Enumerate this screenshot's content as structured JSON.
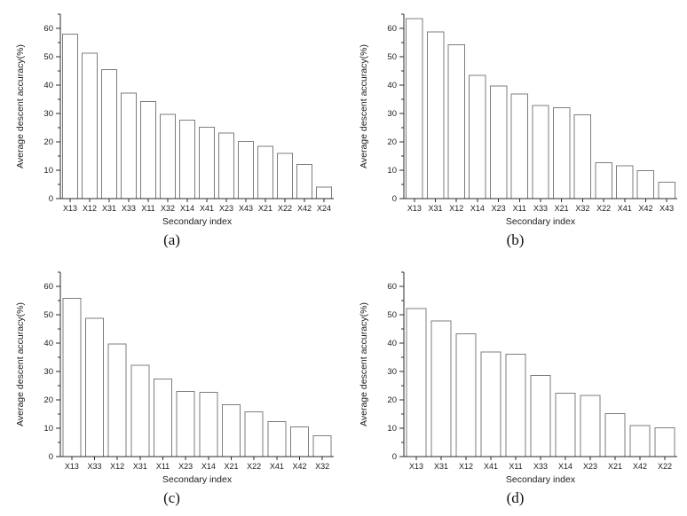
{
  "page": {
    "background": "#ffffff"
  },
  "colors": {
    "bar_fill": "#ffffff",
    "bar_stroke": "#7d7d7d",
    "axis": "#2b2b2b",
    "text": "#1c1c1c"
  },
  "chart_data": [
    {
      "type": "bar",
      "caption": "(a)",
      "title": "",
      "xlabel": "Secondary index",
      "ylabel": "Average descent accuracy(%)",
      "ylim": [
        0,
        65
      ],
      "yticks": [
        0,
        10,
        20,
        30,
        40,
        50,
        60
      ],
      "minor_tick_step": 5,
      "grid": false,
      "legend_position": "none",
      "categories": [
        "X13",
        "X12",
        "X31",
        "X33",
        "X11",
        "X32",
        "X14",
        "X41",
        "X23",
        "X43",
        "X21",
        "X22",
        "X42",
        "X24"
      ],
      "values": [
        58.0,
        51.3,
        45.5,
        37.2,
        34.2,
        29.7,
        27.7,
        25.1,
        23.2,
        20.1,
        18.4,
        16.0,
        12.0,
        4.1
      ]
    },
    {
      "type": "bar",
      "caption": "(b)",
      "title": "",
      "xlabel": "Secondary index",
      "ylabel": "Average descent accuracy(%)",
      "ylim": [
        0,
        65
      ],
      "yticks": [
        0,
        10,
        20,
        30,
        40,
        50,
        60
      ],
      "minor_tick_step": 5,
      "grid": false,
      "legend_position": "none",
      "categories": [
        "X13",
        "X31",
        "X12",
        "X14",
        "X23",
        "X11",
        "X33",
        "X21",
        "X32",
        "X22",
        "X41",
        "X42",
        "X43"
      ],
      "values": [
        63.5,
        58.8,
        54.2,
        43.5,
        39.7,
        36.8,
        32.8,
        32.0,
        29.5,
        12.7,
        11.5,
        9.8,
        5.8
      ]
    },
    {
      "type": "bar",
      "caption": "(c)",
      "title": "",
      "xlabel": "Secondary index",
      "ylabel": "Average descent accuracy(%)",
      "ylim": [
        0,
        65
      ],
      "yticks": [
        0,
        10,
        20,
        30,
        40,
        50,
        60
      ],
      "minor_tick_step": 5,
      "grid": false,
      "legend_position": "none",
      "categories": [
        "X13",
        "X33",
        "X12",
        "X31",
        "X11",
        "X23",
        "X14",
        "X21",
        "X22",
        "X41",
        "X42",
        "X32"
      ],
      "values": [
        55.8,
        48.8,
        39.7,
        32.2,
        27.3,
        23.0,
        22.7,
        18.3,
        15.8,
        12.4,
        10.4,
        7.4
      ]
    },
    {
      "type": "bar",
      "caption": "(d)",
      "title": "",
      "xlabel": "Secondary index",
      "ylabel": "Average descent accuracy(%)",
      "ylim": [
        0,
        65
      ],
      "yticks": [
        0,
        10,
        20,
        30,
        40,
        50,
        60
      ],
      "minor_tick_step": 5,
      "grid": false,
      "legend_position": "none",
      "categories": [
        "X13",
        "X31",
        "X12",
        "X41",
        "X11",
        "X33",
        "X14",
        "X23",
        "X21",
        "X42",
        "X22"
      ],
      "values": [
        52.2,
        47.8,
        43.3,
        36.9,
        36.1,
        28.6,
        22.3,
        21.6,
        15.1,
        11.0,
        10.1
      ]
    }
  ]
}
